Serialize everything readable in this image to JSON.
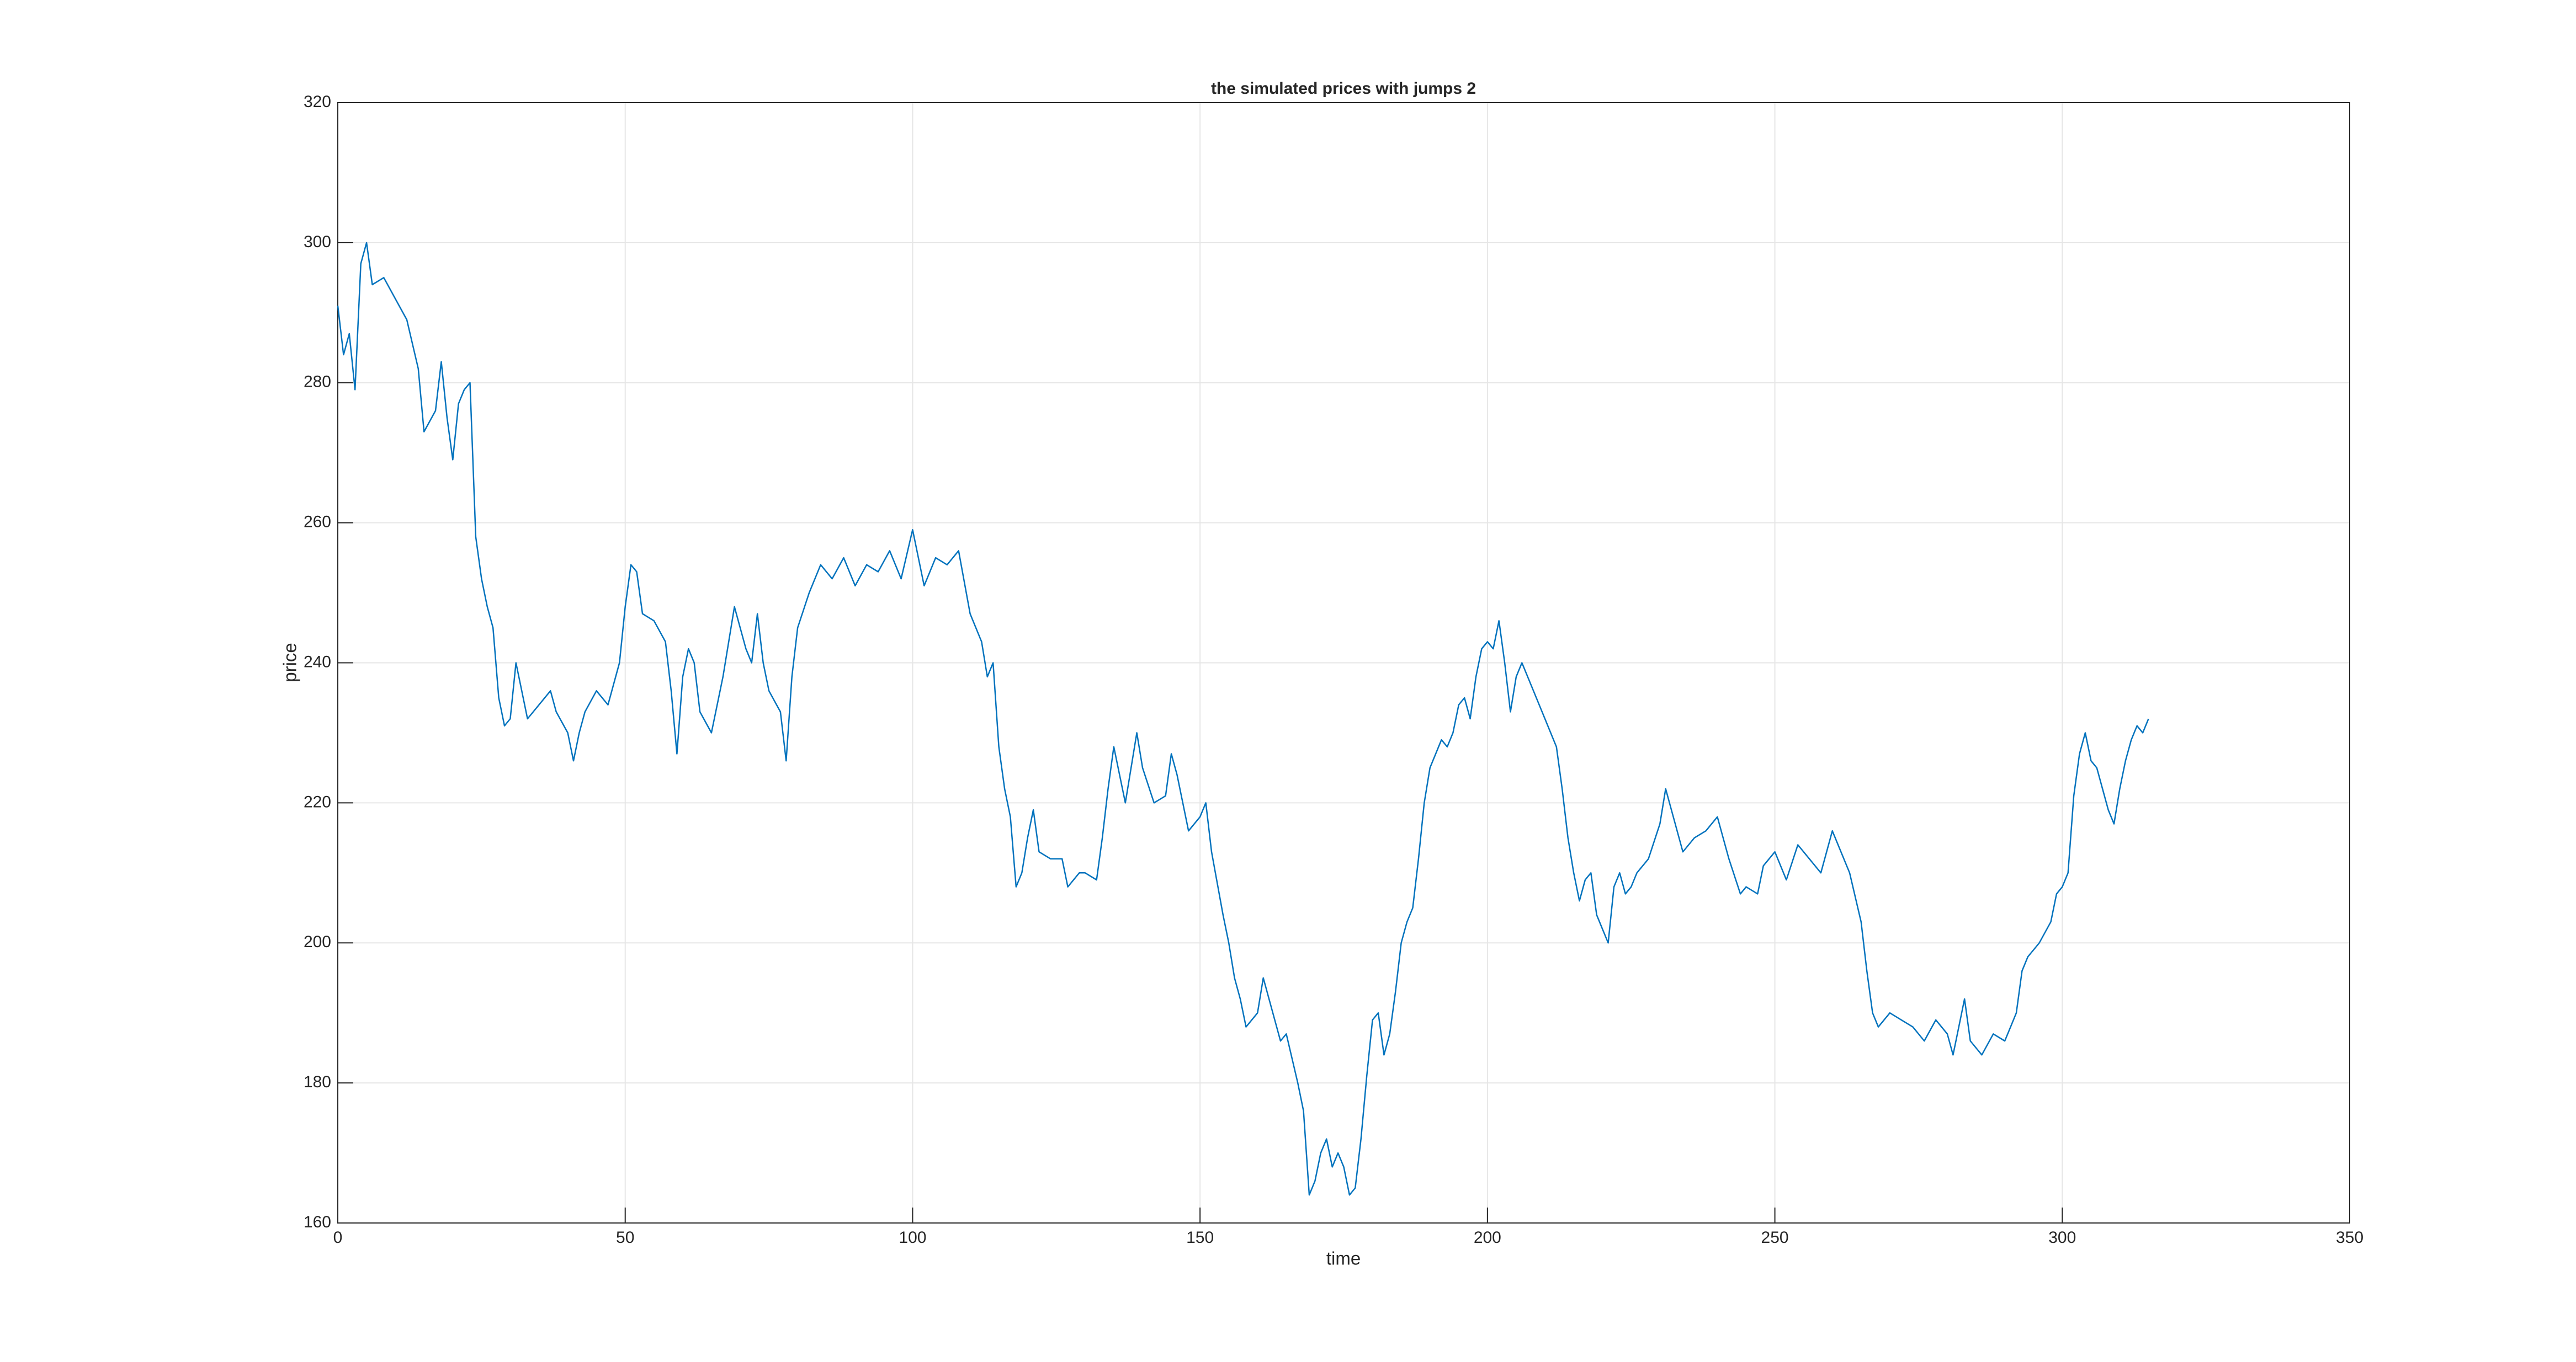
{
  "chart_data": {
    "type": "line",
    "title": "the simulated prices with jumps 2",
    "x_label": "time",
    "y_label": "price",
    "x": [
      0,
      1,
      2,
      3,
      4,
      5,
      6,
      8,
      10,
      12,
      14,
      15,
      17,
      18,
      19,
      20,
      21,
      22,
      23,
      24,
      25,
      26,
      27,
      28,
      29,
      30,
      31,
      33,
      35,
      37,
      38,
      40,
      41,
      42,
      43,
      45,
      47,
      49,
      50,
      51,
      52,
      53,
      55,
      57,
      58,
      59,
      60,
      61,
      62,
      63,
      65,
      67,
      68,
      69,
      70,
      71,
      72,
      73,
      74,
      75,
      77,
      78,
      79,
      80,
      82,
      84,
      86,
      88,
      90,
      92,
      94,
      96,
      98,
      100,
      102,
      104,
      106,
      108,
      110,
      112,
      113,
      114,
      115,
      116,
      117,
      118,
      119,
      120,
      121,
      122,
      124,
      126,
      127,
      129,
      130,
      132,
      133,
      134,
      135,
      137,
      139,
      140,
      142,
      144,
      145,
      146,
      148,
      150,
      151,
      152,
      154,
      155,
      156,
      157,
      158,
      160,
      161,
      162,
      164,
      165,
      167,
      168,
      169,
      170,
      171,
      172,
      173,
      174,
      175,
      176,
      177,
      178,
      179,
      180,
      181,
      182,
      183,
      184,
      185,
      186,
      187,
      188,
      189,
      190,
      191,
      192,
      193,
      194,
      195,
      196,
      197,
      198,
      199,
      200,
      201,
      202,
      203,
      204,
      205,
      206,
      208,
      210,
      212,
      213,
      214,
      215,
      216,
      217,
      218,
      219,
      220,
      221,
      222,
      223,
      224,
      225,
      226,
      228,
      230,
      231,
      232,
      234,
      236,
      238,
      240,
      241,
      242,
      244,
      245,
      247,
      248,
      250,
      252,
      254,
      256,
      258,
      260,
      261,
      263,
      265,
      266,
      267,
      268,
      270,
      272,
      274,
      276,
      278,
      280,
      281,
      282,
      283,
      284,
      286,
      288,
      290,
      291,
      292,
      293,
      294,
      296,
      298,
      299,
      300,
      301,
      302,
      303,
      304,
      305,
      306,
      307,
      308,
      309,
      310,
      311,
      312,
      313,
      314,
      315
    ],
    "values": [
      291,
      284,
      287,
      279,
      297,
      300,
      294,
      295,
      292,
      289,
      282,
      273,
      276,
      283,
      275,
      269,
      277,
      279,
      280,
      258,
      252,
      248,
      245,
      235,
      231,
      232,
      240,
      232,
      234,
      236,
      233,
      230,
      226,
      230,
      233,
      236,
      234,
      240,
      248,
      254,
      253,
      247,
      246,
      243,
      236,
      227,
      238,
      242,
      240,
      233,
      230,
      238,
      243,
      248,
      245,
      242,
      240,
      247,
      240,
      236,
      233,
      226,
      238,
      245,
      250,
      254,
      252,
      255,
      251,
      254,
      253,
      256,
      252,
      259,
      251,
      255,
      254,
      256,
      247,
      243,
      238,
      240,
      228,
      222,
      218,
      208,
      210,
      215,
      219,
      213,
      212,
      212,
      208,
      210,
      210,
      209,
      215,
      222,
      228,
      220,
      230,
      225,
      220,
      221,
      227,
      224,
      216,
      218,
      220,
      213,
      204,
      200,
      195,
      192,
      188,
      190,
      195,
      192,
      186,
      187,
      180,
      176,
      164,
      166,
      170,
      172,
      168,
      170,
      168,
      164,
      165,
      172,
      181,
      189,
      190,
      184,
      187,
      193,
      200,
      203,
      205,
      212,
      220,
      225,
      227,
      229,
      228,
      230,
      234,
      235,
      232,
      238,
      242,
      243,
      242,
      246,
      240,
      233,
      238,
      240,
      236,
      232,
      228,
      222,
      215,
      210,
      206,
      209,
      210,
      204,
      202,
      200,
      208,
      210,
      207,
      208,
      210,
      212,
      217,
      222,
      219,
      213,
      215,
      216,
      218,
      215,
      212,
      207,
      208,
      207,
      211,
      213,
      209,
      214,
      212,
      210,
      216,
      214,
      210,
      203,
      196,
      190,
      188,
      190,
      189,
      188,
      186,
      189,
      187,
      184,
      188,
      192,
      186,
      184,
      187,
      186,
      188,
      190,
      196,
      198,
      200,
      203,
      207,
      208,
      210,
      221,
      227,
      230,
      226,
      225,
      222,
      219,
      217,
      222,
      226,
      229,
      231,
      230,
      232
    ],
    "color": "#0072bd",
    "xlim": [
      0,
      350
    ],
    "xticks": [
      0,
      50,
      100,
      150,
      200,
      250,
      300,
      350
    ],
    "ylim": [
      160,
      320
    ],
    "yticks": [
      160,
      180,
      200,
      220,
      240,
      260,
      280,
      300,
      320
    ],
    "grid": true
  }
}
